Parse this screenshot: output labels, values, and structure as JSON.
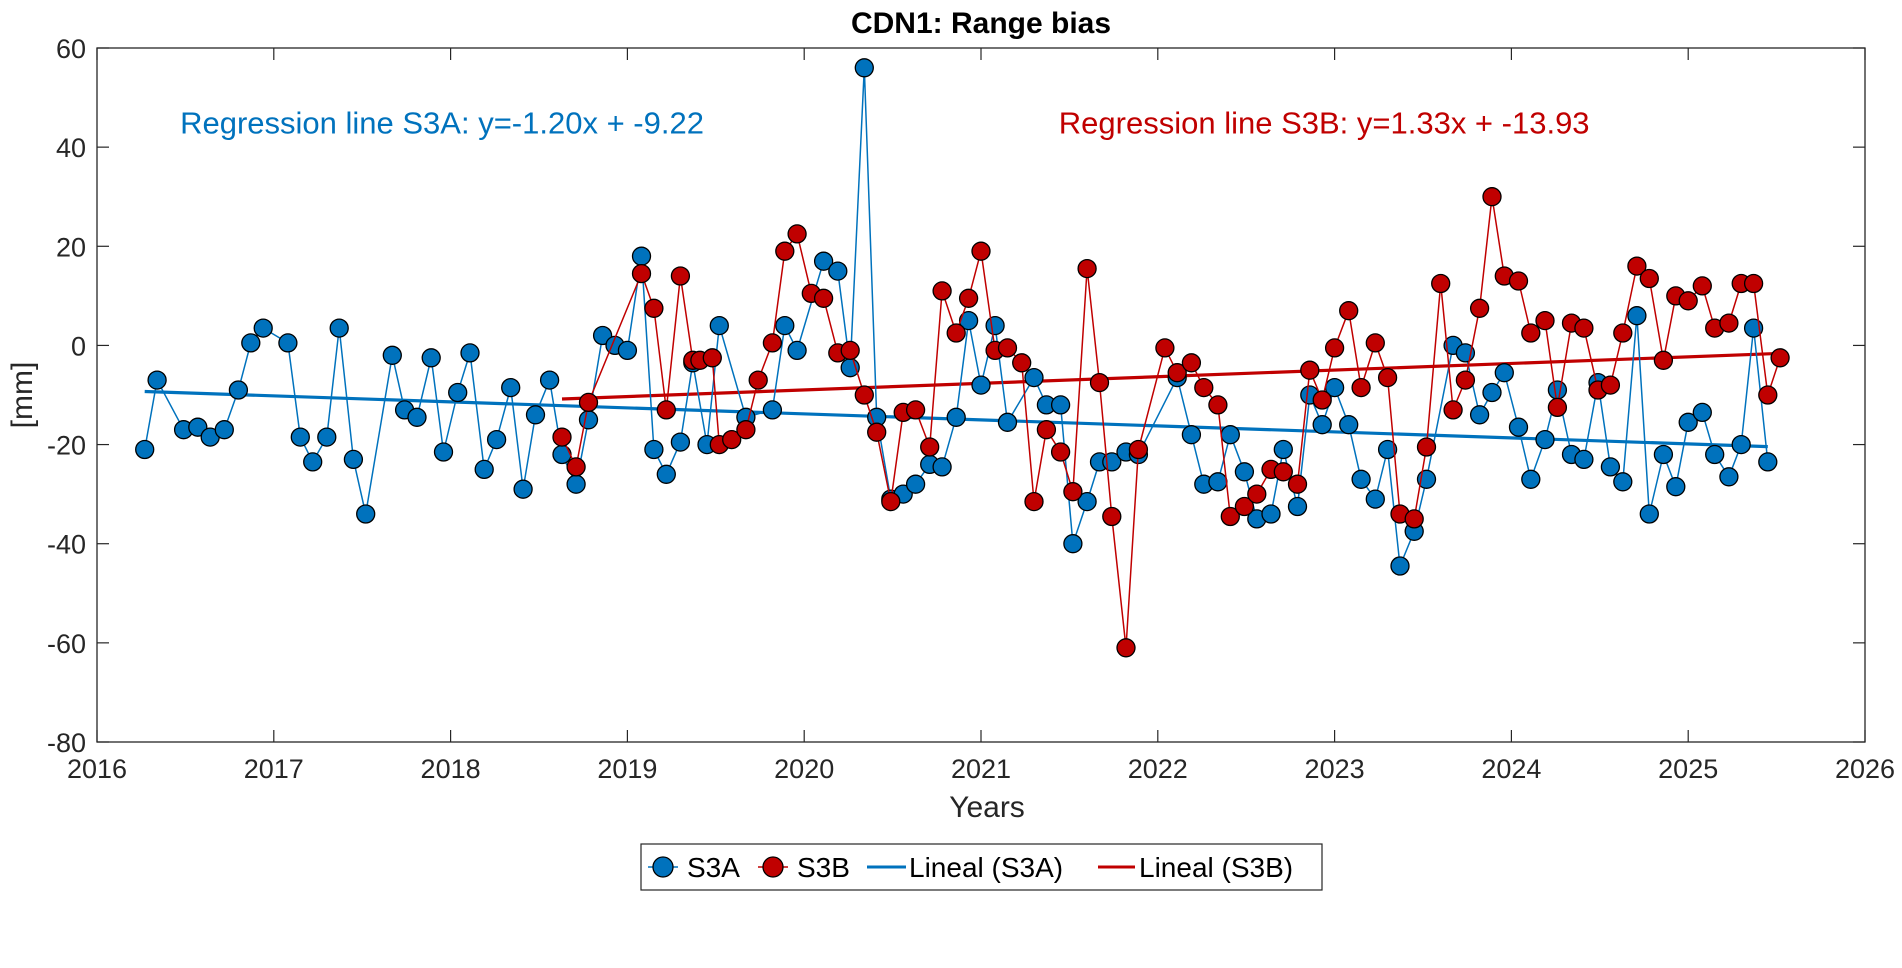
{
  "chart_data": {
    "type": "line",
    "title": "CDN1: Range bias",
    "xlabel": "Years",
    "ylabel": "[mm]",
    "xlim": [
      2016,
      2026
    ],
    "ylim": [
      -80,
      60
    ],
    "xticks": [
      2016,
      2017,
      2018,
      2019,
      2020,
      2021,
      2022,
      2023,
      2024,
      2025,
      2026
    ],
    "yticks": [
      -80,
      -60,
      -40,
      -20,
      0,
      20,
      40,
      60
    ],
    "grid": false,
    "legend_position": "bottom-center",
    "annotations": [
      {
        "text": "Regression line S3A: y=-1.20x + -9.22",
        "color": "#0072BD",
        "x": 2016.47,
        "y": 45
      },
      {
        "text": "Regression line S3B: y=1.33x + -13.93",
        "color": "#C00000",
        "x": 2021.44,
        "y": 45
      }
    ],
    "series": [
      {
        "name": "S3A",
        "color": "#0072BD",
        "kind": "line-marker",
        "x": [
          2016.27,
          2016.34,
          2016.49,
          2016.57,
          2016.64,
          2016.72,
          2016.8,
          2016.87,
          2016.94,
          2017.08,
          2017.15,
          2017.22,
          2017.3,
          2017.37,
          2017.45,
          2017.52,
          2017.67,
          2017.74,
          2017.81,
          2017.89,
          2017.96,
          2018.04,
          2018.11,
          2018.19,
          2018.26,
          2018.34,
          2018.41,
          2018.48,
          2018.56,
          2018.63,
          2018.71,
          2018.78,
          2018.86,
          2018.93,
          2019.0,
          2019.08,
          2019.15,
          2019.22,
          2019.3,
          2019.37,
          2019.45,
          2019.52,
          2019.67,
          2019.82,
          2019.89,
          2019.96,
          2020.11,
          2020.19,
          2020.26,
          2020.34,
          2020.41,
          2020.49,
          2020.56,
          2020.63,
          2020.71,
          2020.78,
          2020.86,
          2020.93,
          2021.0,
          2021.08,
          2021.15,
          2021.3,
          2021.37,
          2021.45,
          2021.52,
          2021.6,
          2021.67,
          2021.74,
          2021.82,
          2021.89,
          2022.11,
          2022.19,
          2022.26,
          2022.34,
          2022.41,
          2022.49,
          2022.56,
          2022.64,
          2022.71,
          2022.79,
          2022.86,
          2022.93,
          2023.0,
          2023.08,
          2023.15,
          2023.23,
          2023.3,
          2023.37,
          2023.45,
          2023.52,
          2023.67,
          2023.74,
          2023.82,
          2023.89,
          2023.96,
          2024.04,
          2024.11,
          2024.19,
          2024.26,
          2024.34,
          2024.41,
          2024.49,
          2024.56,
          2024.63,
          2024.71,
          2024.78,
          2024.86,
          2024.93,
          2025.0,
          2025.08,
          2025.15,
          2025.23,
          2025.3,
          2025.37,
          2025.45
        ],
        "y": [
          -21,
          -7,
          -17,
          -16.5,
          -18.5,
          -17,
          -9,
          0.5,
          3.5,
          0.5,
          -18.5,
          -23.5,
          -18.5,
          3.5,
          -23,
          -34,
          -2,
          -13,
          -14.5,
          -2.5,
          -21.5,
          -9.5,
          -1.5,
          -25,
          -19,
          -8.5,
          -29,
          -14,
          -7,
          -22,
          -28,
          -15,
          2,
          0,
          -1,
          18,
          -21,
          -26,
          -19.5,
          -3.5,
          -20,
          4,
          -14.5,
          -13,
          4,
          -1,
          17,
          15,
          -4.5,
          56,
          -14.5,
          -31,
          -30,
          -28,
          -24,
          -24.5,
          -14.5,
          5,
          -8,
          4,
          -15.5,
          -6.5,
          -12,
          -12,
          -40,
          -31.5,
          -23.5,
          -23.5,
          -21.5,
          -22,
          -6.5,
          -18,
          -28,
          -27.5,
          -18,
          -25.5,
          -35,
          -34,
          -21,
          -32.5,
          -10,
          -16,
          -8.5,
          -16,
          -27,
          -31,
          -21,
          -44.5,
          -37.5,
          -27,
          0,
          -1.5,
          -14,
          -9.5,
          -5.5,
          -16.5,
          -27,
          -19,
          -9,
          -22,
          -23,
          -7.5,
          -24.5,
          -27.5,
          6,
          -34,
          -22,
          -28.5,
          -15.5,
          -13.5,
          -22,
          -26.5,
          -20,
          3.5,
          -23.5
        ]
      },
      {
        "name": "S3B",
        "color": "#C00000",
        "kind": "line-marker",
        "x": [
          2018.63,
          2018.71,
          2018.78,
          2019.08,
          2019.15,
          2019.22,
          2019.3,
          2019.37,
          2019.41,
          2019.48,
          2019.52,
          2019.59,
          2019.67,
          2019.74,
          2019.82,
          2019.89,
          2019.96,
          2020.04,
          2020.11,
          2020.19,
          2020.26,
          2020.34,
          2020.41,
          2020.49,
          2020.56,
          2020.63,
          2020.71,
          2020.78,
          2020.86,
          2020.93,
          2021.0,
          2021.08,
          2021.15,
          2021.23,
          2021.3,
          2021.37,
          2021.45,
          2021.52,
          2021.6,
          2021.67,
          2021.74,
          2021.82,
          2021.89,
          2022.04,
          2022.11,
          2022.19,
          2022.26,
          2022.34,
          2022.41,
          2022.49,
          2022.56,
          2022.64,
          2022.71,
          2022.79,
          2022.86,
          2022.93,
          2023.0,
          2023.08,
          2023.15,
          2023.23,
          2023.3,
          2023.37,
          2023.45,
          2023.52,
          2023.6,
          2023.67,
          2023.74,
          2023.82,
          2023.89,
          2023.96,
          2024.04,
          2024.11,
          2024.19,
          2024.26,
          2024.34,
          2024.41,
          2024.49,
          2024.56,
          2024.63,
          2024.71,
          2024.78,
          2024.86,
          2024.93,
          2025.0,
          2025.08,
          2025.15,
          2025.23,
          2025.3,
          2025.37,
          2025.45,
          2025.52
        ],
        "y": [
          -18.5,
          -24.5,
          -11.5,
          14.5,
          7.5,
          -13,
          14,
          -3,
          -3,
          -2.5,
          -20,
          -19,
          -17,
          -7,
          0.5,
          19,
          22.5,
          10.5,
          9.5,
          -1.5,
          -1,
          -10,
          -17.5,
          -31.5,
          -13.5,
          -13,
          -20.5,
          11,
          2.5,
          9.5,
          19,
          -1,
          -0.5,
          -3.5,
          -31.5,
          -17,
          -21.5,
          -29.5,
          15.5,
          -7.5,
          -34.5,
          -61,
          -21,
          -0.5,
          -5.5,
          -3.5,
          -8.5,
          -12,
          -34.5,
          -32.5,
          -30,
          -25,
          -25.5,
          -28,
          -5,
          -11,
          -0.5,
          7,
          -8.5,
          0.5,
          -6.5,
          -34,
          -35,
          -20.5,
          12.5,
          -13,
          -7,
          7.5,
          30,
          14,
          13,
          2.5,
          5,
          -12.5,
          4.5,
          3.5,
          -9,
          -8,
          2.5,
          16,
          13.5,
          -3,
          10,
          9,
          12,
          3.5,
          4.5,
          12.5,
          12.5,
          -10,
          -2.5
        ]
      },
      {
        "name": "Lineal (S3A)",
        "color": "#0072BD",
        "kind": "line",
        "x": [
          2016.27,
          2025.45
        ],
        "y": [
          -9.3,
          -20.4
        ]
      },
      {
        "name": "Lineal (S3B)",
        "color": "#C00000",
        "kind": "line",
        "x": [
          2018.63,
          2025.52
        ],
        "y": [
          -10.8,
          -1.6
        ]
      }
    ]
  }
}
